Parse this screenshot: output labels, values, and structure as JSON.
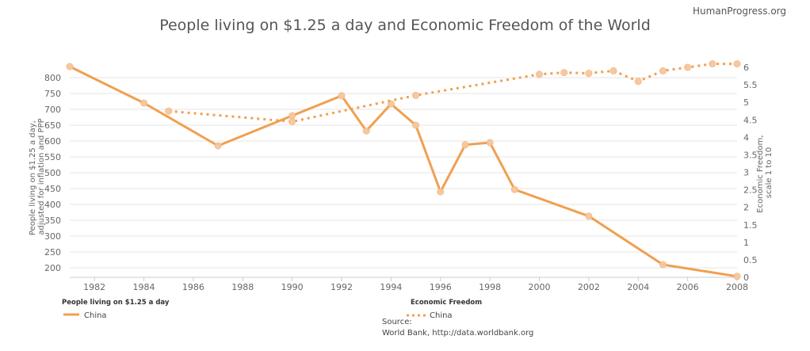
{
  "brand": "HumanProgress.org",
  "chart_data": {
    "type": "line",
    "title": "People living on $1.25 a day and Economic Freedom of the World",
    "xlabel": "",
    "ylabel_left": "People living on $1.25 a day, adjusted for inflation and PPP",
    "ylabel_right": "Economic Freedom, scale 1 to 10",
    "xlim": [
      1981,
      2008
    ],
    "x_ticks": [
      1982,
      1984,
      1986,
      1988,
      1990,
      1992,
      1994,
      1996,
      1998,
      2000,
      2002,
      2004,
      2006,
      2008
    ],
    "ylim_left": [
      200,
      800
    ],
    "y_ticks_left": [
      200,
      250,
      300,
      350,
      400,
      450,
      500,
      550,
      600,
      650,
      700,
      750,
      800
    ],
    "ylim_right": [
      0,
      6
    ],
    "y_ticks_right": [
      0,
      0.5,
      1,
      1.5,
      2,
      2.5,
      3,
      3.5,
      4,
      4.5,
      5,
      5.5,
      6
    ],
    "grid": true,
    "color": "#f0a050",
    "series": [
      {
        "name": "China",
        "axis": "left",
        "style": "solid",
        "x": [
          1981,
          1984,
          1987,
          1990,
          1992,
          1993,
          1994,
          1995,
          1996,
          1997,
          1998,
          1999,
          2002,
          2005,
          2008
        ],
        "values": [
          835,
          720,
          585,
          680,
          743,
          632,
          717,
          650,
          440,
          588,
          595,
          447,
          363,
          210,
          173
        ]
      },
      {
        "name": "China",
        "axis": "right",
        "style": "dotted",
        "x": [
          1985,
          1990,
          1995,
          2000,
          2001,
          2002,
          2003,
          2004,
          2005,
          2006,
          2007,
          2008
        ],
        "values": [
          4.75,
          4.45,
          5.2,
          5.8,
          5.85,
          5.83,
          5.9,
          5.6,
          5.9,
          6.0,
          6.1,
          6.1
        ]
      }
    ],
    "legend": {
      "position": "bottom",
      "groups": [
        {
          "heading": "People living on $1.25 a day",
          "item": "China"
        },
        {
          "heading": "Economic Freedom",
          "item": "China"
        }
      ]
    }
  },
  "source_label": "Source:",
  "source_text": "World Bank, http://data.worldbank.org"
}
